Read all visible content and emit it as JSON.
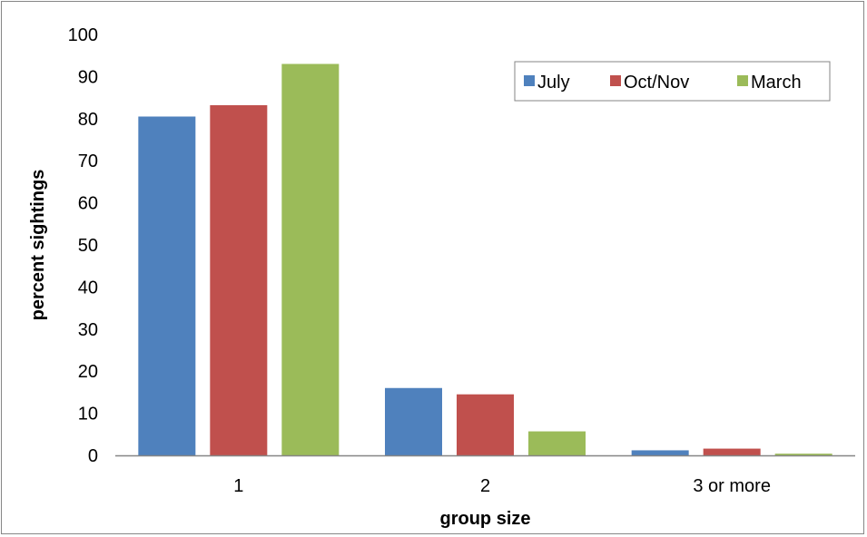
{
  "chart_data": {
    "type": "bar",
    "categories": [
      "1",
      "2",
      "3 or more"
    ],
    "series": [
      {
        "name": "July",
        "values": [
          80.5,
          16,
          1.2
        ],
        "color": "#4F81BD"
      },
      {
        "name": "Oct/Nov",
        "values": [
          83.2,
          14.5,
          1.6
        ],
        "color": "#C0504D"
      },
      {
        "name": "March",
        "values": [
          93,
          5.7,
          0.4
        ],
        "color": "#9BBB59"
      }
    ],
    "title": "",
    "xlabel": "group size",
    "ylabel": "percent sightings",
    "ylim": [
      0,
      100
    ],
    "yticks": [
      "0",
      "10",
      "20",
      "30",
      "40",
      "50",
      "60",
      "70",
      "80",
      "90",
      "100"
    ],
    "grid": false,
    "legend_position": "top-right",
    "axis_color": "#868686"
  }
}
